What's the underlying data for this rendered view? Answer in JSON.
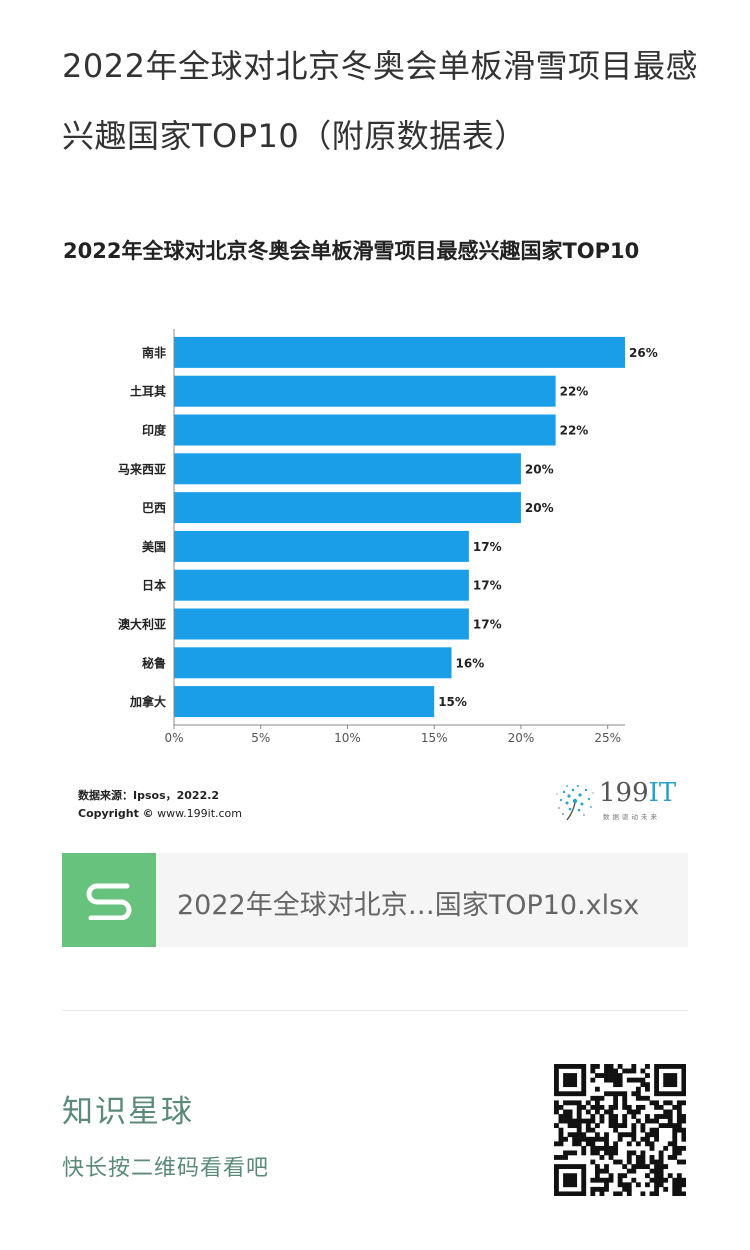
{
  "article": {
    "title": "2022年全球对北京冬奥会单板滑雪项目最感兴趣国家TOP10（附原数据表）"
  },
  "chart_data": {
    "type": "bar",
    "orientation": "horizontal",
    "title": "2022年全球对北京冬奥会单板滑雪项目最感兴趣国家TOP10",
    "categories": [
      "南非",
      "土耳其",
      "印度",
      "马来西亚",
      "巴西",
      "美国",
      "日本",
      "澳大利亚",
      "秘鲁",
      "加拿大"
    ],
    "values": [
      26,
      22,
      22,
      20,
      20,
      17,
      17,
      17,
      16,
      15
    ],
    "value_labels": [
      "26%",
      "22%",
      "22%",
      "20%",
      "20%",
      "17%",
      "17%",
      "17%",
      "16%",
      "15%"
    ],
    "xlim": [
      0,
      26
    ],
    "xticks": [
      0,
      5,
      10,
      15,
      20,
      25
    ],
    "xtick_labels": [
      "0%",
      "5%",
      "10%",
      "15%",
      "20%",
      "25%"
    ],
    "bar_color": "#1a9ee8",
    "grid": false,
    "legend": "none",
    "source": "数据来源：Ipsos，2022.2",
    "copyright_label": "Copyright ©",
    "copyright_site": "www.199it.com",
    "brand": {
      "name_num": "199",
      "name_it": "IT",
      "slogan": "数据驱动未来",
      "accent": "#2aa1c9"
    }
  },
  "attachment": {
    "file_name": "2022年全球对北京…国家TOP10.xlsx",
    "icon": "spreadsheet-s-icon",
    "icon_color": "#67c27e"
  },
  "promo": {
    "title": "知识星球",
    "subtitle": "快长按二维码看看吧",
    "qr_icon": "qr-code",
    "text_color": "#5b8a7a"
  }
}
